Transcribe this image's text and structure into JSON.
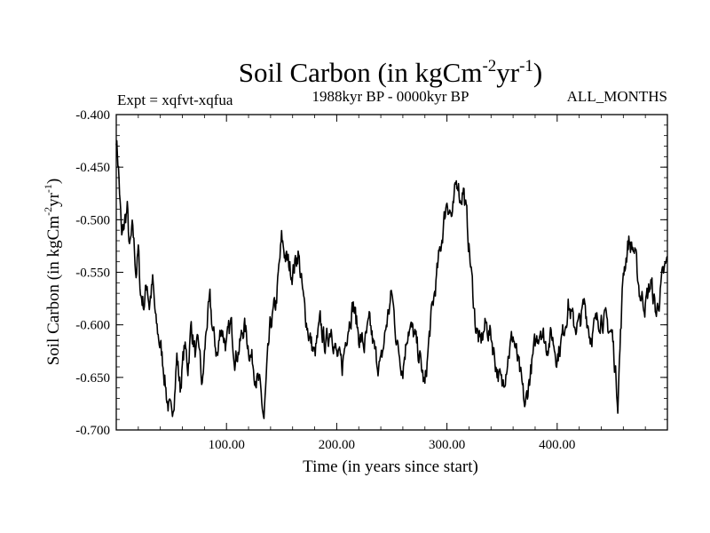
{
  "chart_data": {
    "type": "line",
    "title": {
      "prefix": "Soil Carbon (in kgCm",
      "sup1": "-2",
      "mid": "yr",
      "sup2": "-1",
      "suffix": ")"
    },
    "header": {
      "left": "Expt = xqfvt-xqfua",
      "center": "1988kyr BP - 0000kyr BP",
      "right": "ALL_MONTHS"
    },
    "xlabel": "Time (in years since start)",
    "ylabel": {
      "prefix": "Soil Carbon (in kgCm",
      "sup1": "-2",
      "mid": "yr",
      "sup2": "-1",
      "suffix": ")"
    },
    "xlim": [
      0,
      500
    ],
    "ylim": [
      -0.7,
      -0.4
    ],
    "x_ticks": [
      100,
      200,
      300,
      400
    ],
    "x_tick_labels": [
      "100.00",
      "200.00",
      "300.00",
      "400.00"
    ],
    "y_ticks": [
      -0.7,
      -0.65,
      -0.6,
      -0.55,
      -0.5,
      -0.45,
      -0.4
    ],
    "y_tick_labels": [
      "-0.700",
      "-0.650",
      "-0.600",
      "-0.550",
      "-0.500",
      "-0.450",
      "-0.400"
    ],
    "line_color": "#000000",
    "series": [
      {
        "name": "Soil Carbon",
        "x": [
          0,
          2,
          5,
          8,
          10,
          12,
          15,
          18,
          20,
          22,
          25,
          28,
          30,
          33,
          36,
          40,
          43,
          46,
          50,
          53,
          55,
          58,
          62,
          65,
          68,
          72,
          75,
          78,
          82,
          85,
          88,
          92,
          95,
          100,
          104,
          108,
          112,
          116,
          120,
          125,
          130,
          134,
          137,
          140,
          145,
          150,
          155,
          160,
          165,
          170,
          175,
          180,
          185,
          190,
          195,
          200,
          205,
          210,
          215,
          220,
          225,
          230,
          235,
          240,
          245,
          250,
          255,
          260,
          265,
          270,
          275,
          280,
          285,
          290,
          295,
          300,
          305,
          308,
          310,
          312,
          315,
          318,
          322,
          326,
          330,
          335,
          340,
          345,
          350,
          355,
          360,
          365,
          368,
          371,
          375,
          380,
          385,
          390,
          395,
          400,
          405,
          410,
          415,
          420,
          425,
          430,
          435,
          440,
          445,
          450,
          455,
          460,
          465,
          470,
          475,
          480,
          485,
          490,
          495,
          500
        ],
        "y": [
          -0.42,
          -0.45,
          -0.52,
          -0.5,
          -0.49,
          -0.53,
          -0.51,
          -0.55,
          -0.53,
          -0.57,
          -0.58,
          -0.56,
          -0.58,
          -0.56,
          -0.6,
          -0.62,
          -0.64,
          -0.67,
          -0.69,
          -0.66,
          -0.63,
          -0.66,
          -0.62,
          -0.64,
          -0.6,
          -0.63,
          -0.62,
          -0.66,
          -0.6,
          -0.58,
          -0.61,
          -0.63,
          -0.6,
          -0.62,
          -0.6,
          -0.63,
          -0.62,
          -0.6,
          -0.62,
          -0.64,
          -0.66,
          -0.69,
          -0.64,
          -0.6,
          -0.58,
          -0.52,
          -0.54,
          -0.55,
          -0.53,
          -0.58,
          -0.61,
          -0.63,
          -0.6,
          -0.62,
          -0.6,
          -0.63,
          -0.64,
          -0.6,
          -0.58,
          -0.61,
          -0.62,
          -0.6,
          -0.63,
          -0.64,
          -0.6,
          -0.57,
          -0.62,
          -0.64,
          -0.6,
          -0.61,
          -0.63,
          -0.66,
          -0.6,
          -0.56,
          -0.52,
          -0.48,
          -0.5,
          -0.47,
          -0.46,
          -0.48,
          -0.47,
          -0.5,
          -0.55,
          -0.6,
          -0.62,
          -0.6,
          -0.61,
          -0.64,
          -0.66,
          -0.63,
          -0.61,
          -0.64,
          -0.66,
          -0.68,
          -0.65,
          -0.62,
          -0.6,
          -0.62,
          -0.61,
          -0.63,
          -0.61,
          -0.58,
          -0.6,
          -0.6,
          -0.58,
          -0.61,
          -0.6,
          -0.59,
          -0.6,
          -0.61,
          -0.67,
          -0.55,
          -0.52,
          -0.53,
          -0.57,
          -0.58,
          -0.56,
          -0.59,
          -0.56,
          -0.54
        ]
      }
    ]
  }
}
